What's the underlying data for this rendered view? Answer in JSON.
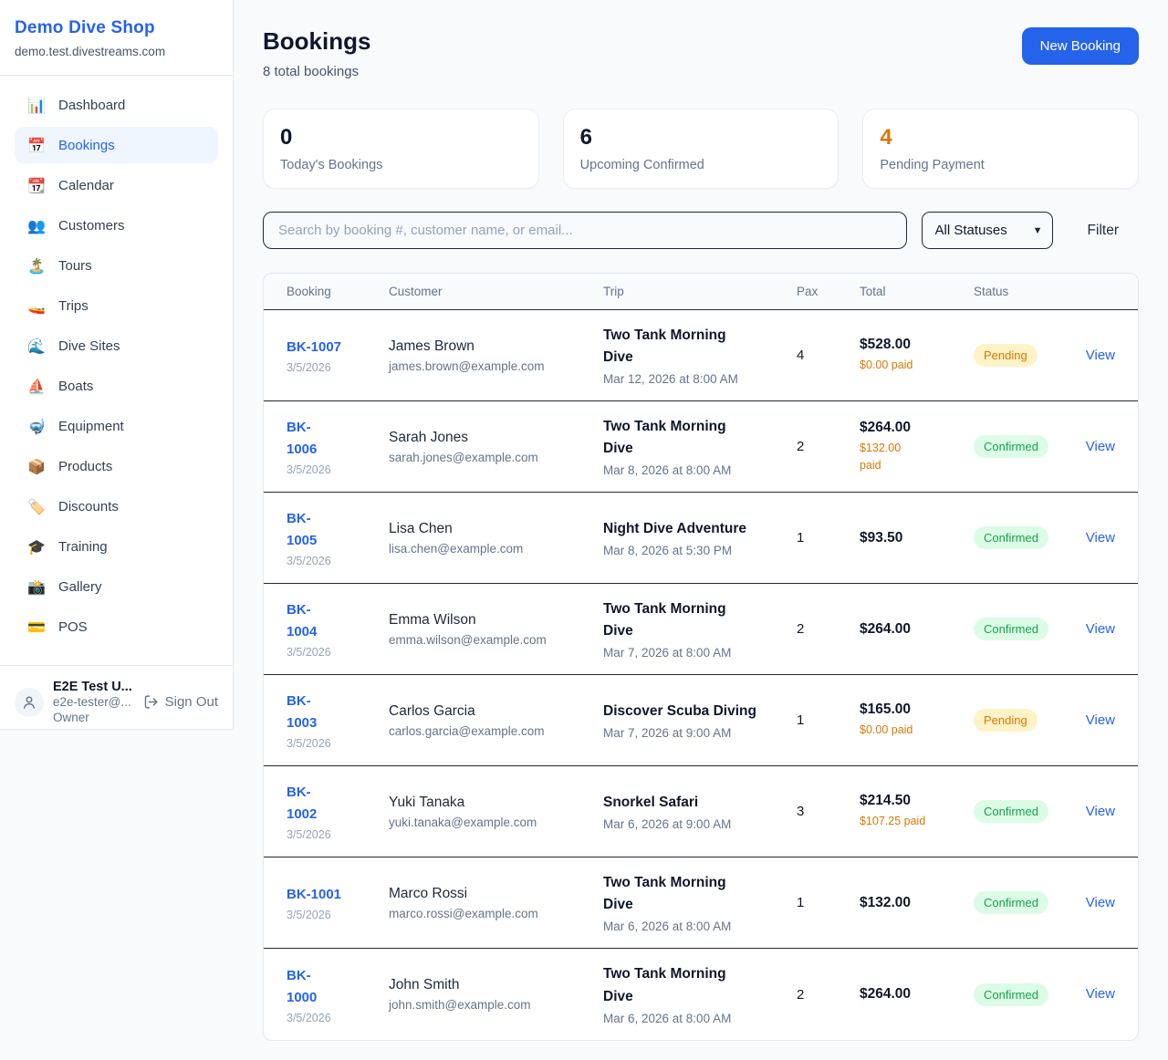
{
  "colors": {
    "accent_blue": "#2563EB",
    "pending_text": "#D97706",
    "pending_bg": "#FEF3C7",
    "confirmed_text": "#16A34A",
    "confirmed_bg": "#DCFCE7",
    "page_bg": "#F8FAFC",
    "row_divider": "#1F2937"
  },
  "sidebar": {
    "brand": {
      "name": "Demo Dive Shop",
      "domain": "demo.test.divestreams.com"
    },
    "nav": [
      {
        "label": "Dashboard",
        "icon": "bar-chart-icon",
        "emoji": "📊",
        "active": false
      },
      {
        "label": "Bookings",
        "icon": "calendar-icon",
        "emoji": "📅",
        "active": true
      },
      {
        "label": "Calendar",
        "icon": "tear-calendar-icon",
        "emoji": "📆",
        "active": false
      },
      {
        "label": "Customers",
        "icon": "people-icon",
        "emoji": "👥",
        "active": false
      },
      {
        "label": "Tours",
        "icon": "island-icon",
        "emoji": "🏝️",
        "active": false
      },
      {
        "label": "Trips",
        "icon": "speedboat-icon",
        "emoji": "🚤",
        "active": false
      },
      {
        "label": "Dive Sites",
        "icon": "wave-icon",
        "emoji": "🌊",
        "active": false
      },
      {
        "label": "Boats",
        "icon": "sailboat-icon",
        "emoji": "⛵",
        "active": false
      },
      {
        "label": "Equipment",
        "icon": "dive-mask-icon",
        "emoji": "🤿",
        "active": false
      },
      {
        "label": "Products",
        "icon": "package-icon",
        "emoji": "📦",
        "active": false
      },
      {
        "label": "Discounts",
        "icon": "tag-icon",
        "emoji": "🏷️",
        "active": false
      },
      {
        "label": "Training",
        "icon": "graduation-cap-icon",
        "emoji": "🎓",
        "active": false
      },
      {
        "label": "Gallery",
        "icon": "camera-icon",
        "emoji": "📸",
        "active": false
      },
      {
        "label": "POS",
        "icon": "credit-card-icon",
        "emoji": "💳",
        "active": false
      }
    ],
    "user": {
      "name": "E2E Test U...",
      "email": "e2e-tester@...",
      "role": "Owner",
      "sign_out_label": "Sign Out"
    }
  },
  "header": {
    "title": "Bookings",
    "subtitle": "8 total bookings",
    "new_booking_label": "New Booking"
  },
  "stats": [
    {
      "value": "0",
      "label": "Today's Bookings",
      "accent": false
    },
    {
      "value": "6",
      "label": "Upcoming Confirmed",
      "accent": false
    },
    {
      "value": "4",
      "label": "Pending Payment",
      "accent": true
    }
  ],
  "filters": {
    "search_placeholder": "Search by booking #, customer name, or email...",
    "status_selected": "All Statuses",
    "filter_label": "Filter"
  },
  "table": {
    "columns": [
      "Booking",
      "Customer",
      "Trip",
      "Pax",
      "Total",
      "Status"
    ],
    "view_label": "View",
    "rows": [
      {
        "id": "BK-1007",
        "id_wrapped": false,
        "date": "3/5/2026",
        "customer": "James Brown",
        "email": "james.brown@example.com",
        "trip": "Two Tank Morning Dive",
        "trip_datetime": "Mar 12, 2026 at 8:00 AM",
        "pax": "4",
        "total": "$528.00",
        "paid": "$0.00 paid",
        "paid_wrapped": false,
        "status": "Pending"
      },
      {
        "id": "BK-1006",
        "id_wrapped": true,
        "date": "3/5/2026",
        "customer": "Sarah Jones",
        "email": "sarah.jones@example.com",
        "trip": "Two Tank Morning Dive",
        "trip_datetime": "Mar 8, 2026 at 8:00 AM",
        "pax": "2",
        "total": "$264.00",
        "paid": "$132.00 paid",
        "paid_wrapped": true,
        "status": "Confirmed"
      },
      {
        "id": "BK-1005",
        "id_wrapped": true,
        "date": "3/5/2026",
        "customer": "Lisa Chen",
        "email": "lisa.chen@example.com",
        "trip": "Night Dive Adventure",
        "trip_datetime": "Mar 8, 2026 at 5:30 PM",
        "pax": "1",
        "total": "$93.50",
        "paid": null,
        "paid_wrapped": false,
        "status": "Confirmed"
      },
      {
        "id": "BK-1004",
        "id_wrapped": true,
        "date": "3/5/2026",
        "customer": "Emma Wilson",
        "email": "emma.wilson@example.com",
        "trip": "Two Tank Morning Dive",
        "trip_datetime": "Mar 7, 2026 at 8:00 AM",
        "pax": "2",
        "total": "$264.00",
        "paid": null,
        "paid_wrapped": false,
        "status": "Confirmed"
      },
      {
        "id": "BK-1003",
        "id_wrapped": true,
        "date": "3/5/2026",
        "customer": "Carlos Garcia",
        "email": "carlos.garcia@example.com",
        "trip": "Discover Scuba Diving",
        "trip_datetime": "Mar 7, 2026 at 9:00 AM",
        "pax": "1",
        "total": "$165.00",
        "paid": "$0.00 paid",
        "paid_wrapped": false,
        "status": "Pending"
      },
      {
        "id": "BK-1002",
        "id_wrapped": true,
        "date": "3/5/2026",
        "customer": "Yuki Tanaka",
        "email": "yuki.tanaka@example.com",
        "trip": "Snorkel Safari",
        "trip_datetime": "Mar 6, 2026 at 9:00 AM",
        "pax": "3",
        "total": "$214.50",
        "paid": "$107.25 paid",
        "paid_wrapped": false,
        "status": "Confirmed"
      },
      {
        "id": "BK-1001",
        "id_wrapped": false,
        "date": "3/5/2026",
        "customer": "Marco Rossi",
        "email": "marco.rossi@example.com",
        "trip": "Two Tank Morning Dive",
        "trip_datetime": "Mar 6, 2026 at 8:00 AM",
        "pax": "1",
        "total": "$132.00",
        "paid": null,
        "paid_wrapped": false,
        "status": "Confirmed"
      },
      {
        "id": "BK-1000",
        "id_wrapped": true,
        "date": "3/5/2026",
        "customer": "John Smith",
        "email": "john.smith@example.com",
        "trip": "Two Tank Morning Dive",
        "trip_datetime": "Mar 6, 2026 at 8:00 AM",
        "pax": "2",
        "total": "$264.00",
        "paid": null,
        "paid_wrapped": false,
        "status": "Confirmed"
      }
    ]
  }
}
